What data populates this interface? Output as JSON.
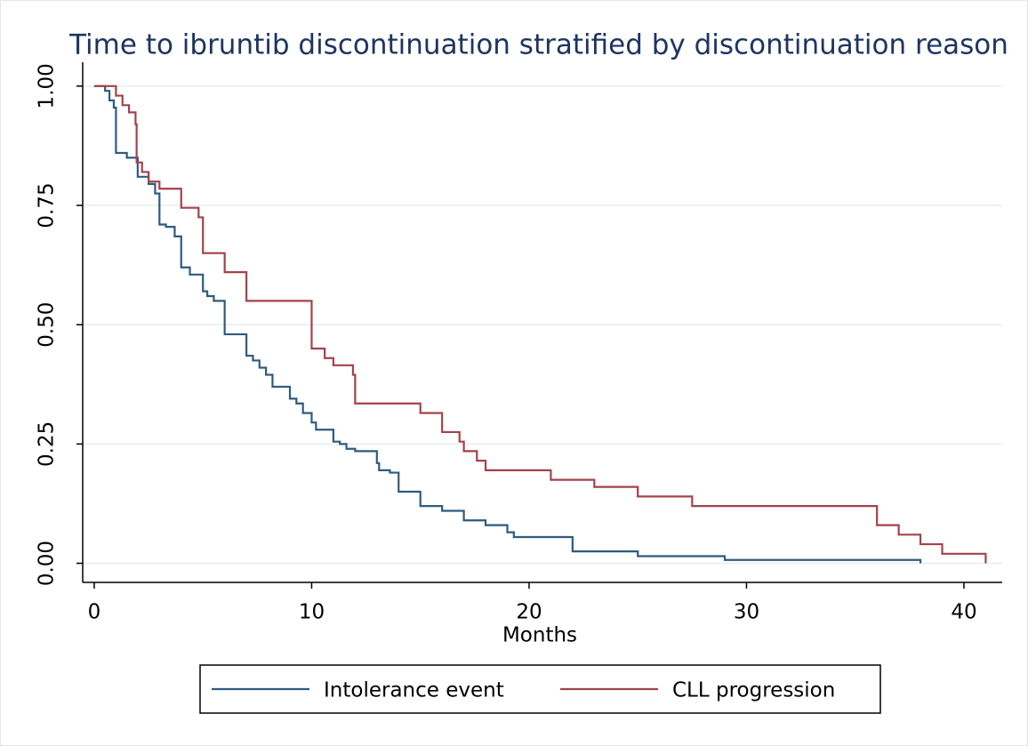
{
  "chart_data": {
    "type": "step",
    "title": "Time to ibruntib discontinuation stratified by discontinuation reason",
    "xlabel": "Months",
    "xlim": [
      -0.53,
      41.76
    ],
    "xticks": [
      0,
      10,
      20,
      30,
      40
    ],
    "ylim": [
      -0.04,
      1.05
    ],
    "yticks": [
      {
        "value": 0,
        "label": "0.00"
      },
      {
        "value": 0.25,
        "label": "0.25"
      },
      {
        "value": 0.5,
        "label": "0.50"
      },
      {
        "value": 0.75,
        "label": "0.75"
      },
      {
        "value": 1,
        "label": "1.00"
      }
    ],
    "grid": true,
    "legend": "bottom",
    "series": [
      {
        "name": "Intolerance event",
        "color": "#2e5b7f",
        "x": [
          0,
          0.5,
          0.7,
          0.9,
          1.0,
          1.5,
          2,
          2.5,
          2.8,
          3,
          3.3,
          3.7,
          4,
          4.4,
          5,
          5.2,
          5.5,
          6,
          7,
          7.3,
          7.6,
          7.9,
          8.2,
          9,
          9.3,
          9.6,
          10,
          10.2,
          11,
          11.3,
          11.6,
          12,
          13,
          13.1,
          13.6,
          14,
          15,
          16,
          17,
          18,
          19,
          19.3,
          22,
          25,
          29,
          38
        ],
        "values": [
          1.0,
          0.99,
          0.97,
          0.955,
          0.86,
          0.85,
          0.81,
          0.795,
          0.775,
          0.71,
          0.705,
          0.685,
          0.62,
          0.605,
          0.57,
          0.56,
          0.55,
          0.48,
          0.435,
          0.425,
          0.41,
          0.395,
          0.37,
          0.345,
          0.335,
          0.315,
          0.295,
          0.28,
          0.255,
          0.25,
          0.24,
          0.235,
          0.21,
          0.195,
          0.19,
          0.15,
          0.12,
          0.11,
          0.09,
          0.08,
          0.065,
          0.055,
          0.025,
          0.015,
          0.007,
          0
        ]
      },
      {
        "name": "CLL progression",
        "color": "#a3424c",
        "x": [
          0,
          1,
          1.3,
          1.6,
          1.9,
          1.95,
          2.2,
          2.5,
          3,
          4,
          4.8,
          5,
          6,
          7,
          10,
          10.6,
          11,
          11.9,
          12,
          15,
          16,
          16.8,
          17,
          17.6,
          18,
          21,
          23,
          25,
          27.5,
          36,
          37,
          38,
          39,
          41
        ],
        "values": [
          1.0,
          0.98,
          0.96,
          0.945,
          0.92,
          0.84,
          0.82,
          0.8,
          0.785,
          0.745,
          0.725,
          0.65,
          0.61,
          0.55,
          0.45,
          0.43,
          0.415,
          0.395,
          0.335,
          0.315,
          0.275,
          0.255,
          0.235,
          0.215,
          0.195,
          0.175,
          0.16,
          0.14,
          0.12,
          0.08,
          0.06,
          0.04,
          0.02,
          0
        ]
      }
    ]
  }
}
